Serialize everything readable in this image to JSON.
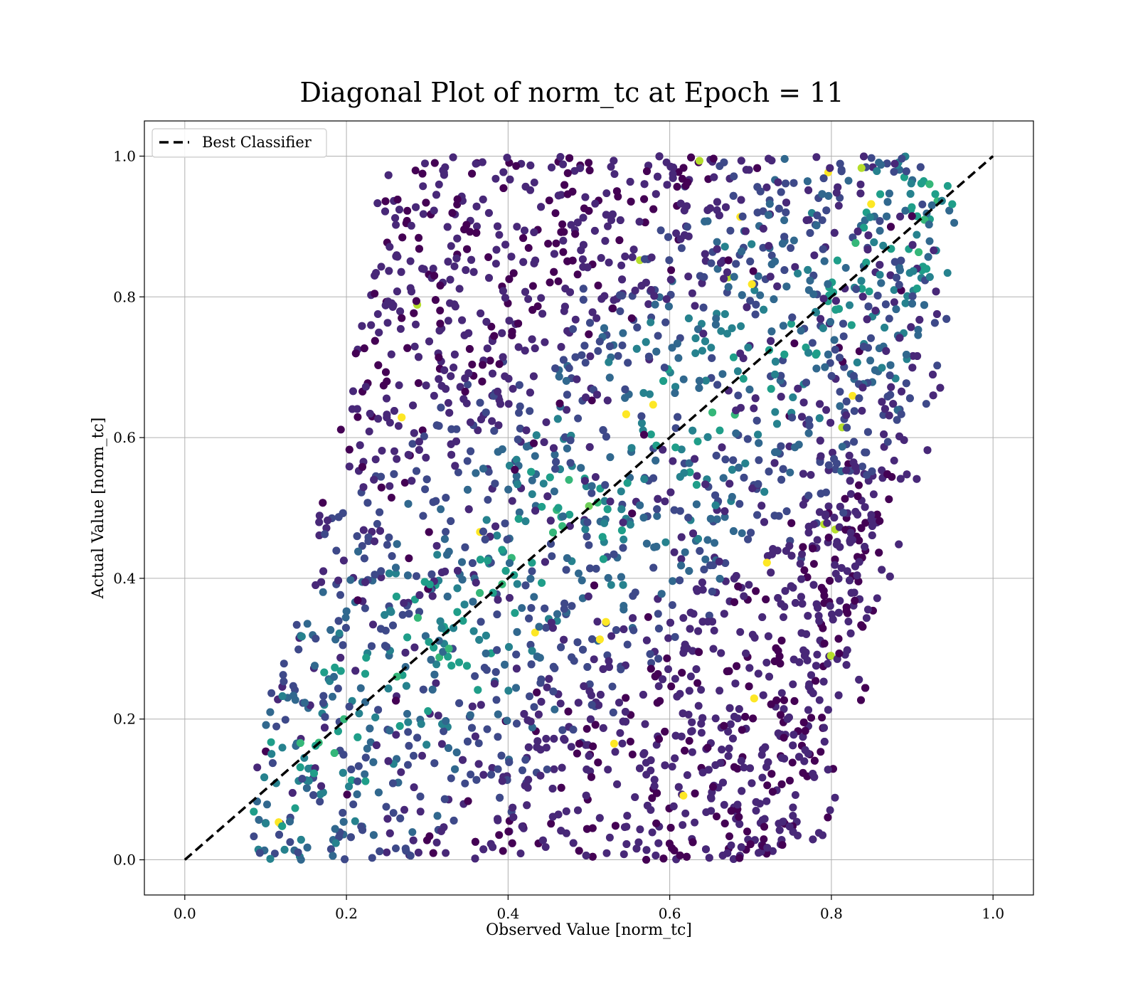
{
  "chart_data": {
    "type": "scatter",
    "title": "Diagonal Plot of norm_tc at Epoch = 11",
    "xlabel": "Observed Value [norm_tc]",
    "ylabel": "Actual Value [norm_tc]",
    "xlim": [
      -0.05,
      1.05
    ],
    "ylim": [
      -0.05,
      1.05
    ],
    "x_ticks": [
      "0.0",
      "0.2",
      "0.4",
      "0.6",
      "0.8",
      "1.0"
    ],
    "y_ticks": [
      "0.0",
      "0.2",
      "0.4",
      "0.6",
      "0.8",
      "1.0"
    ],
    "grid": true,
    "legend": {
      "placement": "upper-left",
      "entries": [
        "Best Classifier"
      ]
    },
    "reference_line": {
      "name": "Best Classifier",
      "style": "dashed",
      "color": "#000000",
      "x": [
        0,
        1
      ],
      "y": [
        0,
        1
      ]
    },
    "scatter_band": {
      "description_points": [
        {
          "y": 0.0,
          "x_min": 0.08,
          "x_max": 0.75
        },
        {
          "y": 0.2,
          "x_min": 0.09,
          "x_max": 0.8
        },
        {
          "y": 0.4,
          "x_min": 0.14,
          "x_max": 0.84
        },
        {
          "y": 0.6,
          "x_min": 0.19,
          "x_max": 0.89
        },
        {
          "y": 0.8,
          "x_min": 0.22,
          "x_max": 0.92
        },
        {
          "y": 1.0,
          "x_min": 0.24,
          "x_max": 0.93
        }
      ],
      "colormap": "viridis",
      "color_stops": [
        "#440154",
        "#482878",
        "#3e4989",
        "#31688e",
        "#26828e",
        "#1f9e89",
        "#35b779",
        "#6ece58",
        "#b5de2b",
        "#fde725"
      ]
    }
  }
}
